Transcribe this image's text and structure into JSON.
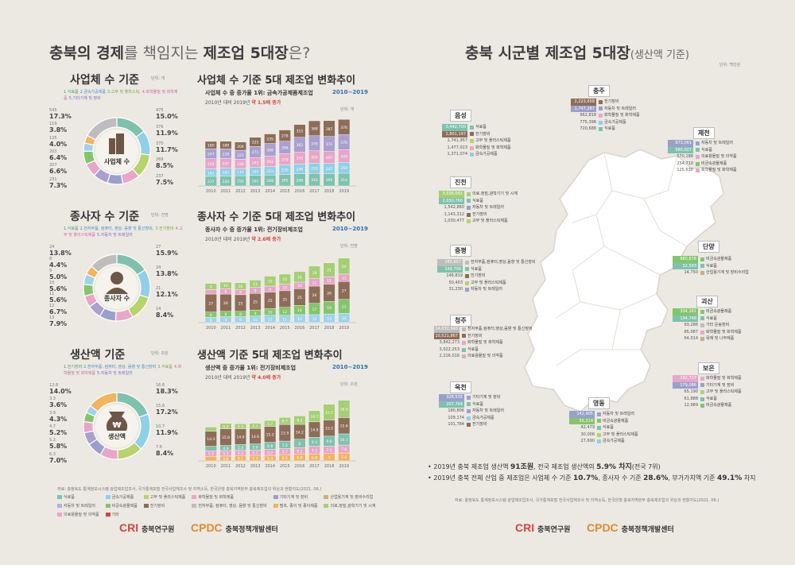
{
  "colors": {
    "food": "#7ec2ad",
    "metal": "#8fcfe8",
    "plastic": "#b6d36c",
    "chem": "#e8a7c8",
    "machine": "#9aa0cc",
    "elec": "#c9b07d",
    "car": "#b9aee0",
    "other": "#8a7565",
    "brown": "#8d6d58",
    "green": "#84c56c",
    "lgreen": "#a5cf74",
    "pink": "#e7a6c7",
    "blue": "#9ed3ea",
    "purple": "#a9a0d0",
    "gray": "#bdbdbd",
    "orange": "#f2b461",
    "red": "#d2453f"
  },
  "left": {
    "title_a": "충북의 ",
    "title_b": "경제",
    "title_c": "를 책임지는 ",
    "title_d": "제조업 5대장",
    "title_e": "은?",
    "sections": [
      {
        "donut_title": "사업체 수 기준",
        "unit": "단위: 개",
        "cats": [
          "1.식료품",
          "2.금속가공제품",
          "3.고무 및 플라스틱,",
          "4.화학물질 및 화학제품",
          "5.기타기계 및 장비"
        ],
        "center_label": "사업체 수",
        "left_pcts": [
          {
            "n": "545",
            "p": "17.3%"
          },
          {
            "n": "119",
            "p": "3.8%"
          },
          {
            "n": "125",
            "p": "4.0%"
          },
          {
            "n": "203",
            "p": "6.4%"
          },
          {
            "n": "207",
            "p": "6.6%"
          },
          {
            "n": "231",
            "p": "7.3%"
          }
        ],
        "right_pcts": [
          {
            "n": "475",
            "p": "15.0%"
          },
          {
            "n": "376",
            "p": "11.9%"
          },
          {
            "n": "370",
            "p": "11.7%"
          },
          {
            "n": "269",
            "p": "8.5%"
          },
          {
            "n": "237",
            "p": "7.5%"
          }
        ],
        "donut_values": [
          15.0,
          11.9,
          11.7,
          8.5,
          7.5,
          7.3,
          6.6,
          6.4,
          4.0,
          3.8,
          17.3
        ],
        "chart_title": "사업체 수 기준 5대 제조업 변화추이",
        "chart_sub1": "사업체 수 중 증가율 1위: 금속가공제품제조업",
        "chart_range": "2010~2019",
        "chart_sub2a": "2010년 대비 2019년 ",
        "chart_sub2b": "약 1.5배 증가",
        "chart_unit": "단위: 개",
        "chart_data": {
          "type": "bar",
          "stacked": true,
          "categories": [
            "2010",
            "2011",
            "2012",
            "2013",
            "2014",
            "2015",
            "2016",
            "2017",
            "2018",
            "2019"
          ],
          "series": [
            {
              "name": "식료품",
              "values": [
                237,
                244,
                252,
                261,
                268,
                285,
                298,
                310,
                305,
                314
              ]
            },
            {
              "name": "금속가공제품",
              "values": [
                181,
                192,
                177,
                195,
                210,
                230,
                246,
                253,
                247,
                269
              ]
            },
            {
              "name": "고무 및 플라스틱",
              "values": [
                252,
                247,
                228,
                245,
                262,
                279,
                292,
                303,
                297,
                309
              ]
            },
            {
              "name": "화학물질 및 화학제품",
              "values": [
                247,
                228,
                221,
                271,
                306,
                306,
                362,
                370,
                371,
                370
              ]
            },
            {
              "name": "기타기계 및 장비",
              "values": [
                180,
                189,
                204,
                225,
                235,
                278,
                315,
                368,
                387,
                376
              ]
            }
          ],
          "ymax": 1800
        }
      },
      {
        "donut_title": "종사자 수 기준",
        "unit": "단위: 천명",
        "cats": [
          "1.식료품",
          "2.전자부품, 컴퓨터, 영상, 음향 및 통신장비,",
          "3.전기장비",
          "4.고무 및 플라스틱제품",
          "5.자동차 및 트레일러"
        ],
        "center_label": "종사자 수",
        "left_pcts": [
          {
            "n": "24",
            "p": "13.8%"
          },
          {
            "n": "8",
            "p": "4.4%"
          },
          {
            "n": "9",
            "p": "5.0%"
          },
          {
            "n": "10",
            "p": "5.6%"
          },
          {
            "n": "11",
            "p": "5.6%"
          },
          {
            "n": "12",
            "p": "6.7%"
          },
          {
            "n": "13",
            "p": "7.9%"
          }
        ],
        "right_pcts": [
          {
            "n": "27",
            "p": "15.9%"
          },
          {
            "n": "24",
            "p": "13.8%"
          },
          {
            "n": "21",
            "p": "12.1%"
          },
          {
            "n": "14",
            "p": "8.4%"
          }
        ],
        "donut_values": [
          15.9,
          13.8,
          12.1,
          8.4,
          7.9,
          6.7,
          5.6,
          5.6,
          5.0,
          4.4,
          13.8
        ],
        "chart_title": "종사자 수 기준 5대 제조업 변화추이",
        "chart_sub1": "종사자 수 중 증가율 1위: 전기장비제조업",
        "chart_range": "2010~2019",
        "chart_sub2a": "2010년 대비 2019년 ",
        "chart_sub2b": "약 2.6배 증가",
        "chart_unit": "단위: 천명",
        "chart_data": {
          "type": "bar",
          "stacked": true,
          "categories": [
            "2010",
            "2011",
            "2012",
            "2013",
            "2014",
            "2015",
            "2016",
            "2017",
            "2018",
            "2019"
          ],
          "series": [
            {
              "name": "자동차 및 트레일러",
              "values": [
                8,
                9,
                9,
                10,
                11,
                11,
                12,
                12,
                13,
                14
              ]
            },
            {
              "name": "전기장비",
              "values": [
                8,
                8,
                8,
                9,
                10,
                12,
                14,
                17,
                19,
                21
              ]
            },
            {
              "name": "전자부품",
              "values": [
                27,
                26,
                25,
                25,
                25,
                25,
                25,
                26,
                26,
                27
              ]
            },
            {
              "name": "고무 및 플라스틱",
              "values": [
                7,
                8,
                8,
                9,
                9,
                10,
                10,
                11,
                11,
                11
              ]
            },
            {
              "name": "식료품",
              "values": [
                9,
                10,
                10,
                11,
                15,
                15,
                16,
                19,
                21,
                24
              ]
            }
          ],
          "ymax": 110
        }
      },
      {
        "donut_title": "생산액 기준",
        "unit": "단위: 조원",
        "cats": [
          "1.전기장비",
          "2.전자부품, 컴퓨터, 영상, 음향 및 통신장비",
          "3.식료품",
          "4.화학물질 및 화학제품",
          "5.자동차 및 트레일러"
        ],
        "center_label": "생산액",
        "left_pcts": [
          {
            "n": "12.8",
            "p": "14.0%"
          },
          {
            "n": "3.3",
            "p": "3.6%"
          },
          {
            "n": "3.9",
            "p": "4.3%"
          },
          {
            "n": "4.7",
            "p": "5.2%"
          },
          {
            "n": "5.2",
            "p": "5.8%"
          },
          {
            "n": "6.3",
            "p": "7.0%"
          }
        ],
        "right_pcts": [
          {
            "n": "16.6",
            "p": "18.3%"
          },
          {
            "n": "15.6",
            "p": "17.2%"
          },
          {
            "n": "10.7",
            "p": "11.9%"
          },
          {
            "n": "7.6",
            "p": "8.4%"
          }
        ],
        "donut_values": [
          18.3,
          17.2,
          11.9,
          8.4,
          7.0,
          5.8,
          5.2,
          4.3,
          3.6,
          14.0
        ],
        "chart_title": "생산액 기준 5대 제조업 변화추이",
        "chart_sub1": "생산액 중 증가율 1위: 전기장비제조업",
        "chart_range": "2010~2019",
        "chart_sub2a": "2010년 대비 2019년 ",
        "chart_sub2b": "약 4.0배 증가",
        "chart_unit": "단위: 조원",
        "chart_data": {
          "type": "bar",
          "stacked": true,
          "categories": [
            "2010",
            "2011",
            "2012",
            "2013",
            "2014",
            "2015",
            "2016",
            "2017",
            "2018",
            "2019"
          ],
          "series": [
            {
              "name": "자동차 및 트레일러",
              "values": [
                4.4,
                4.6,
                5.1,
                5.3,
                5.3,
                6.1,
                6.6,
                6.8,
                7.0,
                7.6
              ]
            },
            {
              "name": "화학물질",
              "values": [
                5.3,
                5.3,
                5.2,
                5.1,
                5.7,
                5.7,
                6.2,
                7.3,
                7.1,
                7.6
              ]
            },
            {
              "name": "식료품",
              "values": [
                4.3,
                4.9,
                5.4,
                5.9,
                6.8,
                7.2,
                8.0,
                8.4,
                9.6,
                10.7
              ]
            },
            {
              "name": "전자부품",
              "values": [
                14.3,
                15.8,
                14.9,
                14.6,
                15.2,
                15.9,
                14.2,
                14.9,
                15.5,
                15.6
              ]
            },
            {
              "name": "전기장비",
              "values": [
                4.1,
                5.3,
                4.9,
                5.1,
                5.7,
                6.7,
                8.2,
                10.7,
                15.1,
                16.6
              ]
            }
          ],
          "ymax": 70
        }
      }
    ],
    "source": "자료: 충청북도 통계정보시스템 광업제조업조사, 국가통계포털 전국사업체조사 및 지역소득, 한국은행 충북지역본부 충북제조업의 위상과 현황지도(2021. 06.)",
    "legend": [
      {
        "c": "#7ec2ad",
        "t": "식료품"
      },
      {
        "c": "#8fcfe8",
        "t": "금속가공제품"
      },
      {
        "c": "#b6d36c",
        "t": "고무 및 플라스틱제품"
      },
      {
        "c": "#e8a7c8",
        "t": "화학물질 및 화학제품"
      },
      {
        "c": "#9aa0cc",
        "t": "기타기계 및 장비"
      },
      {
        "c": "#c9b07d",
        "t": "산업용기계 및 장비수리업"
      },
      {
        "c": "#b9aee0",
        "t": "자동차 및 트레일러"
      },
      {
        "c": "#84c56c",
        "t": "비금속광물제품"
      },
      {
        "c": "#8d6d58",
        "t": "전기장비"
      },
      {
        "c": "#bdbdbd",
        "t": "전자부품, 컴퓨터, 영상, 음향 및 통신장비"
      },
      {
        "c": "#f2b461",
        "t": "펄프, 종이 및 종이제품"
      },
      {
        "c": "#a5cf74",
        "t": "의료,정밀,광학기기 및 시계"
      },
      {
        "c": "#e7a6c7",
        "t": "의료용물질 및 의약품"
      },
      {
        "c": "#d2453f",
        "t": "기타"
      }
    ],
    "logo1": "CRI",
    "logo1_name": "충북연구원",
    "logo2": "CPDC",
    "logo2_name": "충북정책개발센터"
  },
  "right": {
    "title": "충북 시군별 제조업 5대장",
    "title_sub": "(생산액 기준)",
    "unit": "단위: 백만원",
    "regions": [
      {
        "name": "충주",
        "items": [
          {
            "v": "2,223,658",
            "t": "전기장비",
            "c": "#8d6d58"
          },
          {
            "v": "1,747,287",
            "t": "자동차 및 트레일러",
            "c": "#9aa0cc"
          },
          {
            "v": "962,818",
            "t": "화학물질 및 화학제품",
            "c": "#e8a7c8"
          },
          {
            "v": "775,398",
            "t": "금속가공제품",
            "c": "#8fcfe8"
          },
          {
            "v": "720,688",
            "t": "식료품",
            "c": "#7ec2ad"
          }
        ]
      },
      {
        "name": "음성",
        "items": [
          {
            "v": "3,442,700",
            "t": "식료품",
            "c": "#7ec2ad"
          },
          {
            "v": "1,801,197",
            "t": "전기장비",
            "c": "#8d6d58"
          },
          {
            "v": "1,741,957",
            "t": "고무 및 플라스틱제품",
            "c": "#b6d36c"
          },
          {
            "v": "1,477,023",
            "t": "화학물질 및 화학제품",
            "c": "#e8a7c8"
          },
          {
            "v": "1,371,074",
            "t": "금속가공제품",
            "c": "#8fcfe8"
          }
        ]
      },
      {
        "name": "제천",
        "items": [
          {
            "v": "873,061",
            "t": "자동차 및 트레일러",
            "c": "#9aa0cc"
          },
          {
            "v": "580,027",
            "t": "식료품",
            "c": "#7ec2ad"
          },
          {
            "v": "570,188",
            "t": "의료용물질 및 의약품",
            "c": "#e7a6c7"
          },
          {
            "v": "254,710",
            "t": "비금속광물제품",
            "c": "#84c56c"
          },
          {
            "v": "125,630",
            "t": "화학물질 및 화학제품",
            "c": "#e8a7c8"
          }
        ]
      },
      {
        "name": "진천",
        "items": [
          {
            "v": "3,036,091",
            "t": "의료,정밀,광학기기 및 시계",
            "c": "#a5cf74"
          },
          {
            "v": "2,050,760",
            "t": "식료품",
            "c": "#7ec2ad"
          },
          {
            "v": "1,542,860",
            "t": "자동차 및 트레일러",
            "c": "#9aa0cc"
          },
          {
            "v": "1,143,312",
            "t": "전기장비",
            "c": "#8d6d58"
          },
          {
            "v": "1,030,477",
            "t": "고무 및 플라스틱제품",
            "c": "#b6d36c"
          }
        ]
      },
      {
        "name": "단양",
        "items": [
          {
            "v": "980,678",
            "t": "비금속광물제품",
            "c": "#84c56c"
          },
          {
            "v": "32,593",
            "t": "식료품",
            "c": "#7ec2ad"
          },
          {
            "v": "14,750",
            "t": "산업용기계 및 장비수리업",
            "c": "#c9b07d"
          }
        ]
      },
      {
        "name": "증평",
        "items": [
          {
            "v": "385,657",
            "t": "전자부품,컴퓨터,영상,음향 및 통신장비",
            "c": "#bdbdbd"
          },
          {
            "v": "149,709",
            "t": "식료품",
            "c": "#7ec2ad"
          },
          {
            "v": "146,819",
            "t": "전기장비",
            "c": "#8d6d58"
          },
          {
            "v": "50,403",
            "t": "고무 및 플라스틱제품",
            "c": "#b6d36c"
          },
          {
            "v": "31,230",
            "t": "자동차 및 트레일러",
            "c": "#9aa0cc"
          }
        ]
      },
      {
        "name": "괴산",
        "items": [
          {
            "v": "334,161",
            "t": "비금속광물제품",
            "c": "#84c56c"
          },
          {
            "v": "194,748",
            "t": "식료품",
            "c": "#7ec2ad"
          },
          {
            "v": "93,286",
            "t": "기타 운송장비",
            "c": "#bdbdbd"
          },
          {
            "v": "85,087",
            "t": "화학물질 및 화학제품",
            "c": "#e8a7c8"
          },
          {
            "v": "64,014",
            "t": "목재 및 나무제품",
            "c": "#c9b07d"
          }
        ]
      },
      {
        "name": "청주",
        "items": [
          {
            "v": "14,032,993",
            "t": "전자부품,컴퓨터,영상,음향 및 통신장비",
            "c": "#bdbdbd"
          },
          {
            "v": "10,521,867",
            "t": "전기장비",
            "c": "#8d6d58"
          },
          {
            "v": "3,842,273",
            "t": "화학물질 및 화학제품",
            "c": "#e8a7c8"
          },
          {
            "v": "3,022,253",
            "t": "식료품",
            "c": "#7ec2ad"
          },
          {
            "v": "2,216,016",
            "t": "의료용물질 및 의약품",
            "c": "#e7a6c7"
          }
        ]
      },
      {
        "name": "보은",
        "items": [
          {
            "v": "292,717",
            "t": "화학물질 및 화학제품",
            "c": "#e8a7c8"
          },
          {
            "v": "179,086",
            "t": "기타기계 및 장비",
            "c": "#9aa0cc"
          },
          {
            "v": "65,190",
            "t": "고무 및 플라스틱제품",
            "c": "#b6d36c"
          },
          {
            "v": "61,888",
            "t": "식료품",
            "c": "#7ec2ad"
          },
          {
            "v": "12,989",
            "t": "비금속광물제품",
            "c": "#84c56c"
          }
        ]
      },
      {
        "name": "옥천",
        "items": [
          {
            "v": "328,535",
            "t": "기타기계 및 장비",
            "c": "#9aa0cc"
          },
          {
            "v": "207,764",
            "t": "식료품",
            "c": "#7ec2ad"
          },
          {
            "v": "180,806",
            "t": "자동차 및 트레일러",
            "c": "#9aa0cc"
          },
          {
            "v": "109,174",
            "t": "금속가공제품",
            "c": "#8fcfe8"
          },
          {
            "v": "101,784",
            "t": "전기장비",
            "c": "#8d6d58"
          }
        ]
      },
      {
        "name": "영동",
        "items": [
          {
            "v": "142,405",
            "t": "자동차 및 트레일러",
            "c": "#9aa0cc"
          },
          {
            "v": "55,214",
            "t": "비금속광물제품",
            "c": "#84c56c"
          },
          {
            "v": "42,479",
            "t": "식료품",
            "c": "#7ec2ad"
          },
          {
            "v": "30,006",
            "t": "고무 및 플라스틱제품",
            "c": "#b6d36c"
          },
          {
            "v": "27,690",
            "t": "금속가공제품",
            "c": "#8fcfe8"
          }
        ]
      }
    ],
    "note1a": "• 2019년 충북 제조업 생산액 ",
    "note1b": "91조원",
    ", ": "",
    "note1c": ", 전국 제조업 생산액의 ",
    "note1d": "5.9% 차지",
    "note1e": "(전국 7위)",
    "note2a": "• 2019년 충북 전체 산업 중 제조업은 사업체 수 기준 ",
    "note2b": "10.7%",
    "note2c": ", 종사자 수 기준 ",
    "note2d": "28.6%",
    "note2e": ", 부가가치액 기준 ",
    "note2f": "49.1%",
    "note2g": " 차지",
    "source": "자료: 충청북도 통계정보시스템 광업제조업조사, 국가통계포털 전국사업체조사 및 지역소득, 한국은행 충북지역본부 충북제조업의 위상과 현황지도(2021. 06.)",
    "logo1": "CRI",
    "logo1_name": "충북연구원",
    "logo2": "CPDC",
    "logo2_name": "충북정책개발센터"
  }
}
